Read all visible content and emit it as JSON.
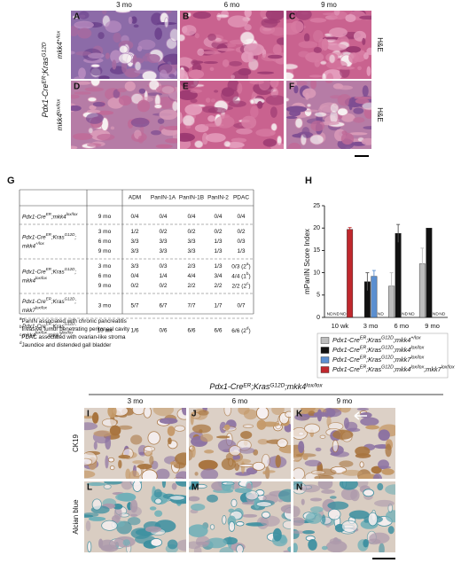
{
  "panels_top": {
    "letters": [
      "A",
      "B",
      "C",
      "D",
      "E",
      "F"
    ],
    "columns": [
      "3 mo",
      "6 mo",
      "9 mo"
    ],
    "genotype": [
      "Pdx1-Cre",
      "ER",
      ";Kras",
      "G12D"
    ],
    "rows": [
      [
        "mkk4",
        "+/lox"
      ],
      [
        "mkk4",
        "lox/lox"
      ]
    ],
    "stains": [
      "H&E",
      "H&E"
    ]
  },
  "table": {
    "letter": "G",
    "headers": [
      "ADM",
      "PanIN-1A",
      "PanIN-1B",
      "PanIN-2",
      "PDAC"
    ],
    "groups": [
      {
        "genotype": [
          [
            "Pdx1-Cre",
            "ER",
            ";mkk4",
            "lox/lox"
          ]
        ],
        "ages": [
          "9 mo"
        ],
        "cells": [
          [
            "0/4",
            "0/4",
            "0/4",
            "0/4",
            "0/4"
          ]
        ]
      },
      {
        "genotype": [
          [
            "Pdx1-Cre",
            "ER",
            ";Kras",
            "G12D",
            ";"
          ],
          [
            "mkk4",
            "+/lox"
          ]
        ],
        "ages": [
          "3 mo",
          "6 mo",
          "9 mo"
        ],
        "cells": [
          [
            "1/2",
            "0/2",
            "0/2",
            "0/2",
            "0/2"
          ],
          [
            "3/3",
            "3/3",
            "3/3",
            "1/3",
            "0/3"
          ],
          [
            "3/3",
            "3/3",
            "3/3",
            "1/3",
            "1/3"
          ]
        ]
      },
      {
        "genotype": [
          [
            "Pdx1-Cre",
            "ER",
            ";Kras",
            "G12D",
            ";"
          ],
          [
            "mkk4",
            "lox/lox"
          ]
        ],
        "ages": [
          "3 mo",
          "6 mo",
          "9 mo"
        ],
        "cells": [
          [
            "3/3",
            "0/3",
            "2/3",
            "1/3",
            [
              "0/3 (2",
              "a",
              ")"
            ]
          ],
          [
            "0/4",
            "1/4",
            "4/4",
            "3/4",
            [
              "4/4 (1",
              "b",
              ")"
            ]
          ],
          [
            "0/2",
            "0/2",
            "2/2",
            "2/2",
            [
              "2/2 (2",
              "c",
              ")"
            ]
          ]
        ]
      },
      {
        "genotype": [
          [
            "Pdx1-Cre",
            "ER",
            ";Kras",
            "G12D",
            ";"
          ],
          [
            "mkk7",
            "lox/lox"
          ]
        ],
        "ages": [
          "3 mo"
        ],
        "cells": [
          [
            "5/7",
            "6/7",
            "7/7",
            "1/7",
            "0/7"
          ]
        ]
      },
      {
        "genotype": [
          [
            "Pdx1-Cre",
            "ER",
            ";Kras",
            "G12D",
            ";"
          ],
          [
            "mkk4",
            "lox/lox",
            ";mkk7",
            "lox/lox"
          ]
        ],
        "ages": [
          "10 wk"
        ],
        "cells": [
          [
            "1/6",
            "0/6",
            "6/6",
            "6/6",
            [
              "6/6 (2",
              "d",
              ")"
            ]
          ]
        ]
      }
    ],
    "footnotes": [
      {
        "mark": "a",
        "text": "PanIN associated with chronic pancreatitis"
      },
      {
        "mark": "b",
        "text": "Invasive tumor penetrating peritoneal cavity"
      },
      {
        "mark": "c",
        "text": "PDAC associated with ovarian-like stroma"
      },
      {
        "mark": "d",
        "text": "Jaundice and distended gall bladder"
      }
    ]
  },
  "chart_data": {
    "type": "bar",
    "panel_letter": "H",
    "y_label": "mPanIN Score Index",
    "categories": [
      "10 wk",
      "3 mo",
      "6 mo",
      "9 mo"
    ],
    "ylim": [
      0,
      25
    ],
    "yticks": [
      0,
      5,
      10,
      15,
      20,
      25
    ],
    "series": [
      {
        "name": [
          "Pdx1-Cre",
          "ER",
          ";Kras",
          "G12D",
          ";mkk4",
          "+/lox"
        ],
        "color": "#bdbdbd",
        "values": [
          null,
          null,
          7,
          12
        ],
        "errors": [
          null,
          null,
          3,
          3.5
        ],
        "value_labels": [
          "ND",
          null,
          null,
          null
        ]
      },
      {
        "name": [
          "Pdx1-Cre",
          "ER",
          ";Kras",
          "G12D",
          ";mkk4",
          "lox/lox"
        ],
        "color": "#111111",
        "values": [
          null,
          8,
          18.8,
          20
        ],
        "errors": [
          null,
          2,
          2,
          null
        ],
        "value_labels": [
          "ND",
          null,
          null,
          null
        ]
      },
      {
        "name": [
          "Pdx1-Cre",
          "ER",
          ";Kras",
          "G12D",
          ";mkk7",
          "lox/lox"
        ],
        "color": "#5b8fd0",
        "values": [
          null,
          9.2,
          null,
          null
        ],
        "errors": [
          null,
          1.3,
          null,
          null
        ],
        "value_labels": [
          "ND",
          null,
          "ND",
          "ND"
        ]
      },
      {
        "name": [
          "Pdx1-Cre",
          "ER",
          ";Kras",
          "G12D",
          ";mkk4",
          "lox/lox",
          ";mkk7",
          "lox/lox"
        ],
        "color": "#c0282d",
        "values": [
          19.7,
          null,
          null,
          null
        ],
        "errors": [
          0.4,
          null,
          null,
          null
        ],
        "value_labels": [
          null,
          "ND",
          "ND",
          "ND"
        ]
      }
    ]
  },
  "panels_bottom": {
    "genotype": [
      "Pdx1-Cre",
      "ER",
      ";Kras",
      "G12D",
      ";mkk4",
      "lox/lox"
    ],
    "letters": [
      "I",
      "J",
      "K",
      "L",
      "M",
      "N"
    ],
    "columns": [
      "3 mo",
      "6 mo",
      "9 mo"
    ],
    "stains": [
      "CK19",
      "Alcian blue"
    ]
  }
}
